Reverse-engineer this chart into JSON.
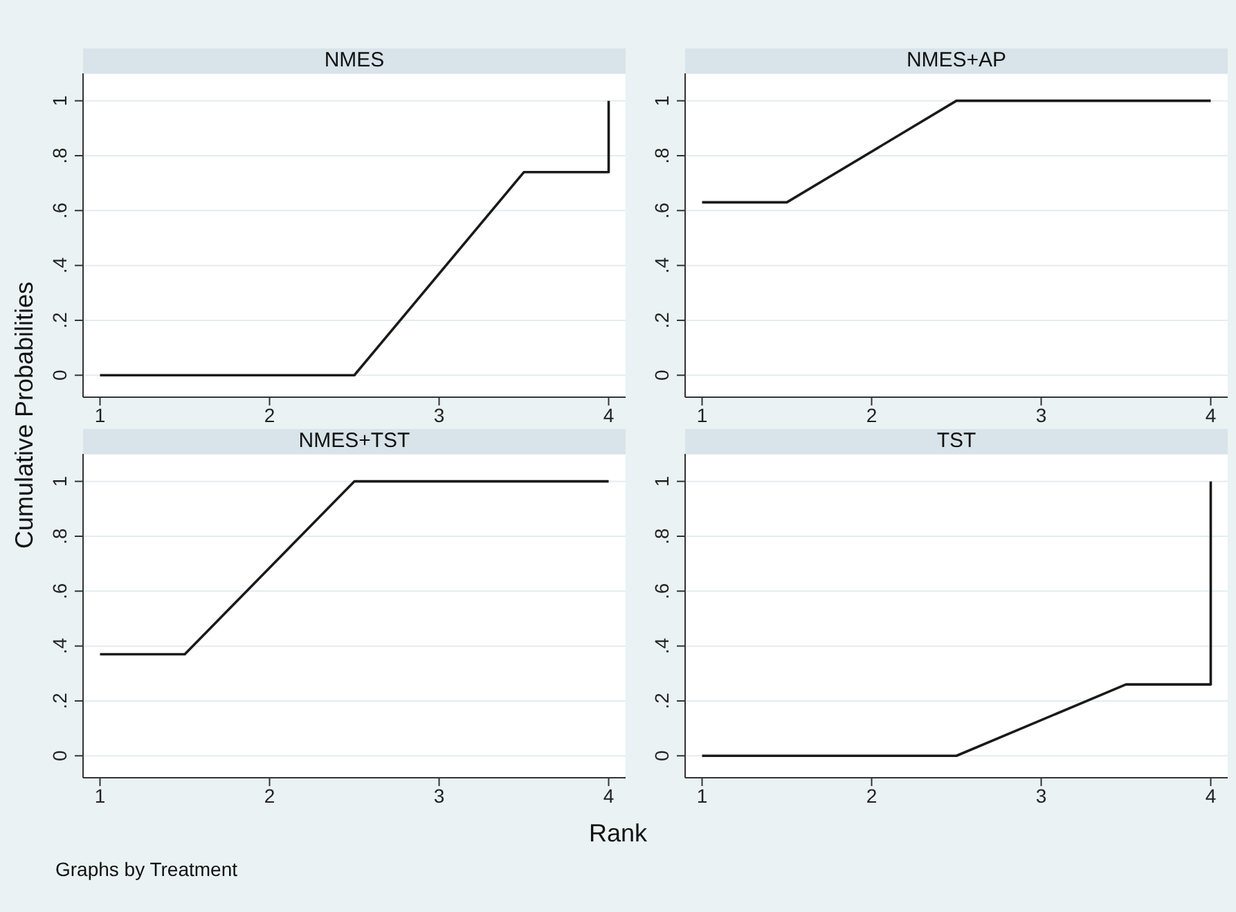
{
  "chart_data": [
    {
      "type": "line",
      "title": "NMES",
      "ylabel": "Cumulative Probabilities",
      "x": [
        1,
        2.5,
        3.5,
        4,
        4
      ],
      "values": [
        0,
        0,
        0.74,
        0.74,
        1
      ],
      "color": "#1a1a1a",
      "xlim": [
        0.9,
        4.1
      ],
      "ylim": [
        -0.08,
        1.1
      ],
      "xticks": [
        1,
        2,
        3,
        4
      ],
      "yticks": [
        {
          "value": 0,
          "label": "0"
        },
        {
          "value": 0.2,
          "label": ".2"
        },
        {
          "value": 0.4,
          "label": ".4"
        },
        {
          "value": 0.6,
          "label": ".6"
        },
        {
          "value": 0.8,
          "label": ".8"
        },
        {
          "value": 1,
          "label": "1"
        }
      ],
      "grid": "y",
      "marker": "none",
      "line_style": "solid"
    },
    {
      "type": "line",
      "title": "NMES+AP",
      "x": [
        1,
        1.5,
        2.5,
        4
      ],
      "values": [
        0.63,
        0.63,
        1,
        1
      ],
      "color": "#1a1a1a",
      "xlim": [
        0.9,
        4.1
      ],
      "ylim": [
        -0.08,
        1.1
      ],
      "xticks": [
        1,
        2,
        3,
        4
      ],
      "yticks": [
        {
          "value": 0,
          "label": "0"
        },
        {
          "value": 0.2,
          "label": ".2"
        },
        {
          "value": 0.4,
          "label": ".4"
        },
        {
          "value": 0.6,
          "label": ".6"
        },
        {
          "value": 0.8,
          "label": ".8"
        },
        {
          "value": 1,
          "label": "1"
        }
      ],
      "grid": "y",
      "marker": "none",
      "line_style": "solid"
    },
    {
      "type": "line",
      "title": "NMES+TST",
      "x": [
        1,
        1.5,
        2.5,
        4
      ],
      "values": [
        0.37,
        0.37,
        1,
        1
      ],
      "color": "#1a1a1a",
      "xlim": [
        0.9,
        4.1
      ],
      "ylim": [
        -0.08,
        1.1
      ],
      "xticks": [
        1,
        2,
        3,
        4
      ],
      "yticks": [
        {
          "value": 0,
          "label": "0"
        },
        {
          "value": 0.2,
          "label": ".2"
        },
        {
          "value": 0.4,
          "label": ".4"
        },
        {
          "value": 0.6,
          "label": ".6"
        },
        {
          "value": 0.8,
          "label": ".8"
        },
        {
          "value": 1,
          "label": "1"
        }
      ],
      "grid": "y",
      "marker": "none",
      "line_style": "solid"
    },
    {
      "type": "line",
      "title": "TST",
      "xlabel": "Rank",
      "annotations": [
        "Graphs by Treatment"
      ],
      "x": [
        1,
        2.5,
        3.5,
        4,
        4
      ],
      "values": [
        0,
        0,
        0.26,
        0.26,
        1
      ],
      "color": "#1a1a1a",
      "xlim": [
        0.9,
        4.1
      ],
      "ylim": [
        -0.08,
        1.1
      ],
      "xticks": [
        1,
        2,
        3,
        4
      ],
      "yticks": [
        {
          "value": 0,
          "label": "0"
        },
        {
          "value": 0.2,
          "label": ".2"
        },
        {
          "value": 0.4,
          "label": ".4"
        },
        {
          "value": 0.6,
          "label": ".6"
        },
        {
          "value": 0.8,
          "label": ".8"
        },
        {
          "value": 1,
          "label": "1"
        }
      ],
      "grid": "y",
      "marker": "none",
      "line_style": "solid"
    }
  ]
}
